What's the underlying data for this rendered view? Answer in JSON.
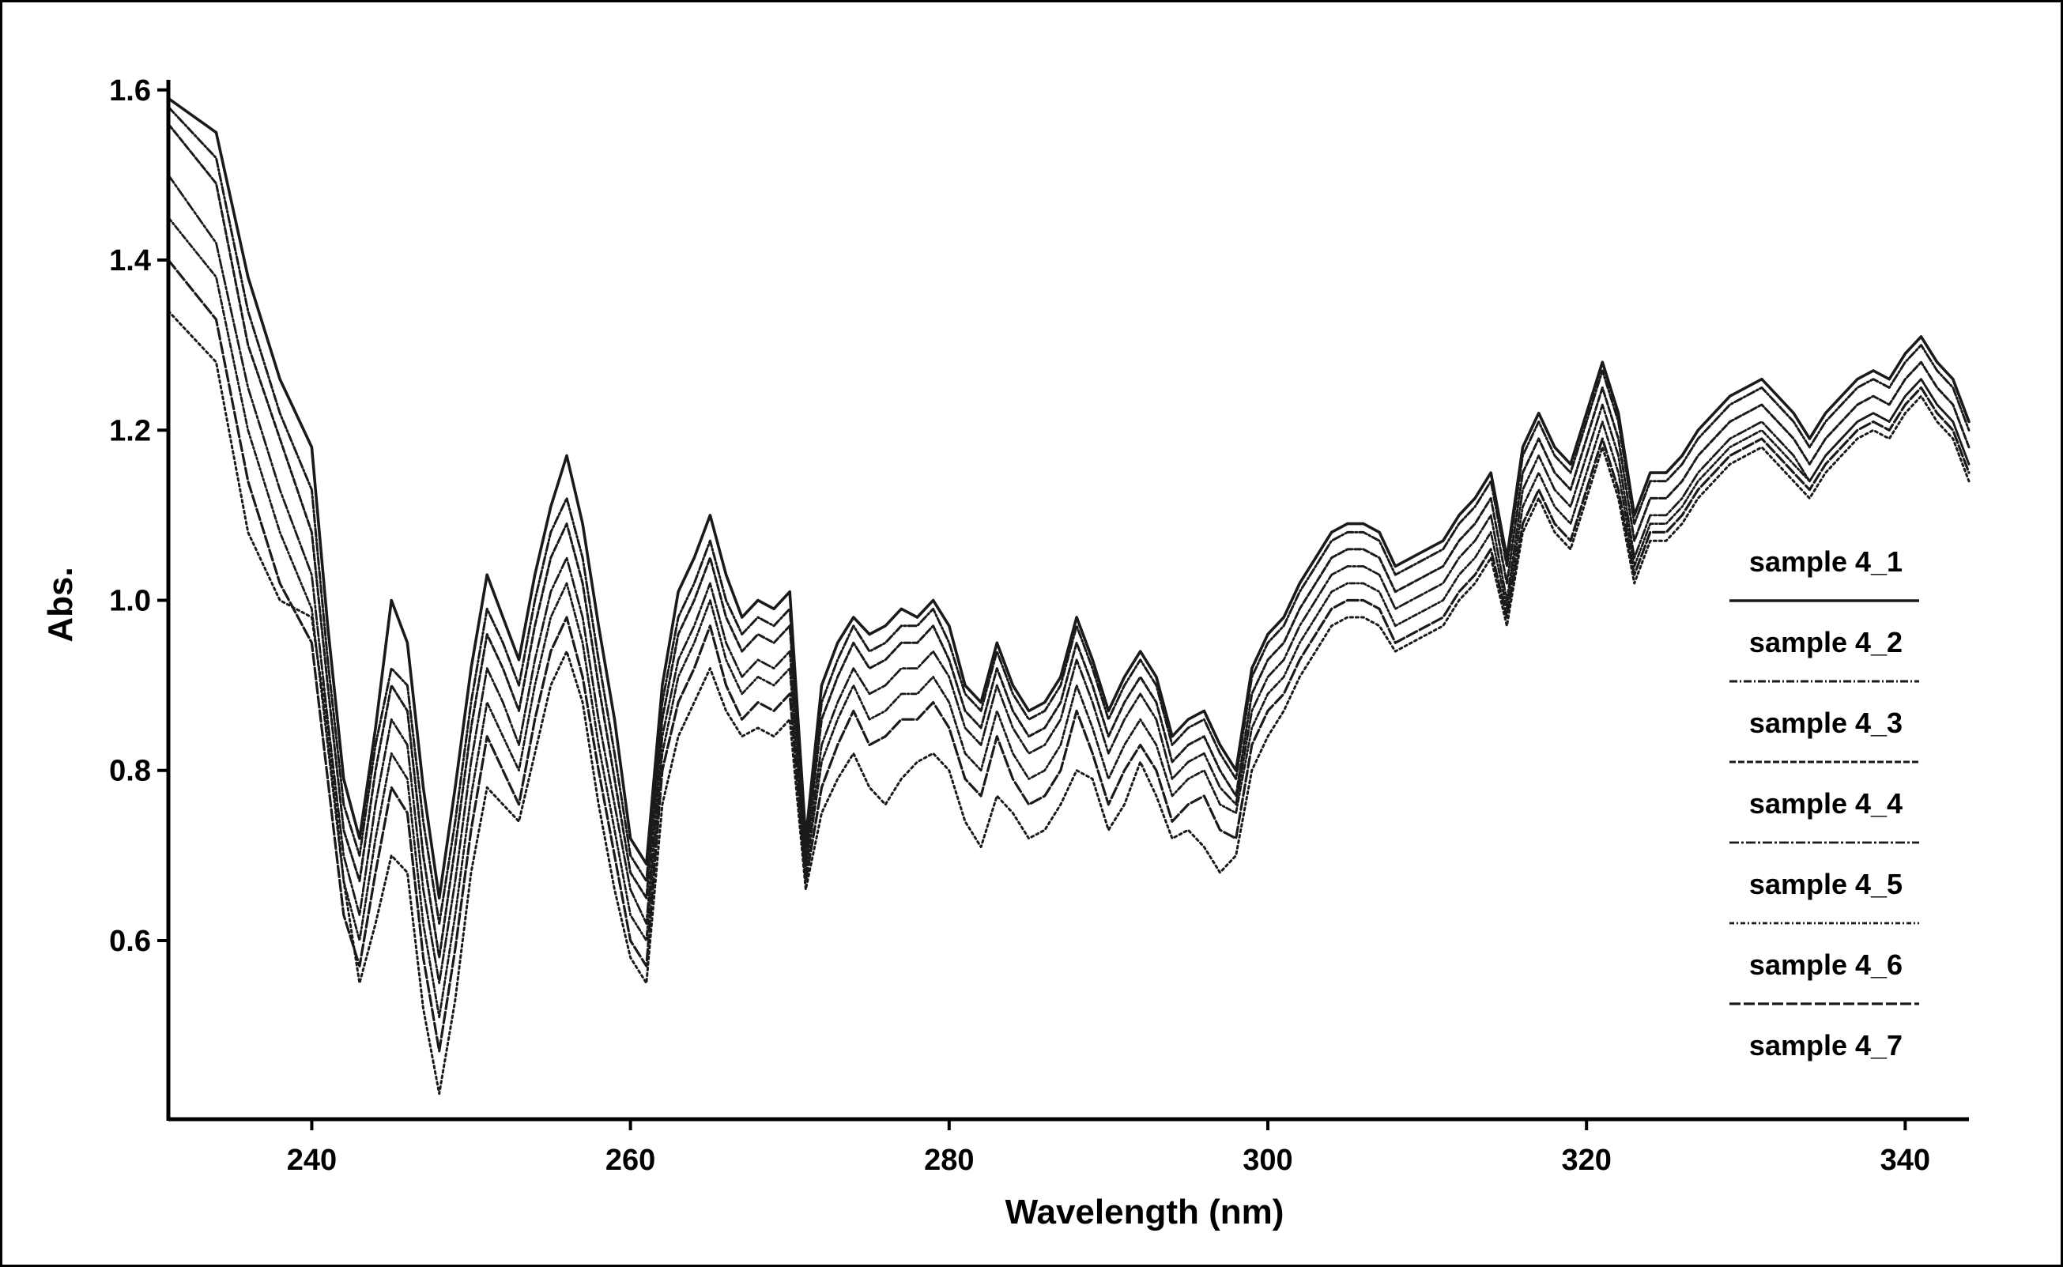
{
  "chart_data": {
    "type": "line",
    "xlabel": "Wavelength (nm)",
    "ylabel": "Abs.",
    "xlim": [
      231,
      344
    ],
    "ylim": [
      0.39,
      1.61
    ],
    "xticks": [
      240,
      260,
      280,
      300,
      320,
      340
    ],
    "yticks": [
      0.6,
      0.8,
      1.0,
      1.2,
      1.4,
      1.6
    ],
    "yticklabels": [
      "0.6",
      "0.8",
      "1.0",
      "1.2",
      "1.4",
      "1.6"
    ],
    "grid": false,
    "legend_position": "right",
    "line_color": "#1a1a1a",
    "x": [
      231,
      234,
      236,
      238,
      240,
      241,
      242,
      243,
      244,
      245,
      246,
      247,
      248,
      249,
      250,
      251,
      252,
      253,
      254,
      255,
      256,
      257,
      258,
      259,
      260,
      261,
      262,
      263,
      264,
      265,
      266,
      267,
      268,
      269,
      270,
      271,
      272,
      273,
      274,
      275,
      276,
      277,
      278,
      279,
      280,
      281,
      282,
      283,
      284,
      285,
      286,
      287,
      288,
      289,
      290,
      291,
      292,
      293,
      294,
      295,
      296,
      297,
      298,
      299,
      300,
      301,
      302,
      303,
      304,
      305,
      306,
      307,
      308,
      309,
      310,
      311,
      312,
      313,
      314,
      315,
      316,
      317,
      318,
      319,
      320,
      321,
      322,
      323,
      324,
      325,
      326,
      327,
      328,
      329,
      330,
      331,
      332,
      333,
      334,
      335,
      336,
      337,
      338,
      339,
      340,
      341,
      342,
      343,
      344
    ],
    "series": [
      {
        "name": "sample 4_1",
        "values": [
          1.59,
          1.55,
          1.38,
          1.26,
          1.18,
          0.97,
          0.79,
          0.72,
          0.85,
          1.0,
          0.95,
          0.78,
          0.65,
          0.78,
          0.92,
          1.03,
          0.98,
          0.93,
          1.03,
          1.11,
          1.17,
          1.09,
          0.97,
          0.86,
          0.72,
          0.69,
          0.9,
          1.01,
          1.05,
          1.1,
          1.03,
          0.98,
          1.0,
          0.99,
          1.01,
          0.72,
          0.9,
          0.95,
          0.98,
          0.96,
          0.97,
          0.99,
          0.98,
          1.0,
          0.97,
          0.9,
          0.88,
          0.95,
          0.9,
          0.87,
          0.88,
          0.91,
          0.98,
          0.93,
          0.87,
          0.91,
          0.94,
          0.91,
          0.84,
          0.86,
          0.87,
          0.83,
          0.8,
          0.92,
          0.96,
          0.98,
          1.02,
          1.05,
          1.08,
          1.09,
          1.09,
          1.08,
          1.04,
          1.05,
          1.06,
          1.07,
          1.1,
          1.12,
          1.15,
          1.05,
          1.18,
          1.22,
          1.18,
          1.16,
          1.22,
          1.28,
          1.22,
          1.1,
          1.15,
          1.15,
          1.17,
          1.2,
          1.22,
          1.24,
          1.25,
          1.26,
          1.24,
          1.22,
          1.19,
          1.22,
          1.24,
          1.26,
          1.27,
          1.26,
          1.29,
          1.31,
          1.28,
          1.26,
          1.21
        ]
      },
      {
        "name": "sample 4_2",
        "values": [
          1.58,
          1.52,
          1.34,
          1.22,
          1.13,
          0.93,
          0.76,
          0.7,
          0.83,
          0.92,
          0.9,
          0.74,
          0.62,
          0.74,
          0.88,
          0.99,
          0.95,
          0.9,
          1.0,
          1.08,
          1.12,
          1.05,
          0.93,
          0.82,
          0.7,
          0.67,
          0.88,
          0.98,
          1.02,
          1.07,
          1.0,
          0.96,
          0.98,
          0.97,
          0.99,
          0.71,
          0.88,
          0.93,
          0.97,
          0.94,
          0.95,
          0.97,
          0.97,
          0.99,
          0.95,
          0.89,
          0.87,
          0.94,
          0.89,
          0.86,
          0.87,
          0.9,
          0.97,
          0.92,
          0.86,
          0.9,
          0.93,
          0.9,
          0.83,
          0.85,
          0.86,
          0.82,
          0.79,
          0.91,
          0.95,
          0.97,
          1.01,
          1.04,
          1.07,
          1.08,
          1.08,
          1.07,
          1.03,
          1.04,
          1.05,
          1.06,
          1.09,
          1.11,
          1.14,
          1.04,
          1.17,
          1.21,
          1.17,
          1.15,
          1.21,
          1.27,
          1.21,
          1.09,
          1.14,
          1.14,
          1.16,
          1.19,
          1.21,
          1.23,
          1.24,
          1.25,
          1.23,
          1.21,
          1.18,
          1.21,
          1.23,
          1.25,
          1.26,
          1.25,
          1.28,
          1.3,
          1.27,
          1.25,
          1.2
        ]
      },
      {
        "name": "sample 4_3",
        "values": [
          1.56,
          1.49,
          1.3,
          1.19,
          1.08,
          0.9,
          0.73,
          0.67,
          0.8,
          0.9,
          0.87,
          0.7,
          0.58,
          0.71,
          0.85,
          0.96,
          0.92,
          0.87,
          0.97,
          1.05,
          1.09,
          1.02,
          0.9,
          0.79,
          0.68,
          0.65,
          0.86,
          0.96,
          1.0,
          1.05,
          0.98,
          0.94,
          0.96,
          0.95,
          0.97,
          0.7,
          0.86,
          0.91,
          0.95,
          0.92,
          0.93,
          0.95,
          0.95,
          0.97,
          0.93,
          0.87,
          0.85,
          0.92,
          0.87,
          0.84,
          0.85,
          0.88,
          0.95,
          0.9,
          0.84,
          0.88,
          0.91,
          0.88,
          0.81,
          0.83,
          0.84,
          0.8,
          0.77,
          0.89,
          0.93,
          0.95,
          0.99,
          1.02,
          1.05,
          1.06,
          1.06,
          1.05,
          1.01,
          1.02,
          1.03,
          1.04,
          1.07,
          1.09,
          1.12,
          1.02,
          1.15,
          1.19,
          1.15,
          1.13,
          1.19,
          1.25,
          1.19,
          1.07,
          1.12,
          1.12,
          1.14,
          1.17,
          1.19,
          1.21,
          1.22,
          1.23,
          1.21,
          1.19,
          1.16,
          1.19,
          1.21,
          1.23,
          1.24,
          1.23,
          1.26,
          1.28,
          1.25,
          1.23,
          1.18
        ]
      },
      {
        "name": "sample 4_4",
        "values": [
          1.5,
          1.42,
          1.25,
          1.13,
          1.03,
          0.86,
          0.7,
          0.63,
          0.76,
          0.86,
          0.83,
          0.66,
          0.55,
          0.67,
          0.81,
          0.92,
          0.88,
          0.83,
          0.93,
          1.01,
          1.05,
          0.98,
          0.86,
          0.76,
          0.66,
          0.62,
          0.84,
          0.93,
          0.97,
          1.02,
          0.95,
          0.91,
          0.93,
          0.92,
          0.94,
          0.69,
          0.83,
          0.88,
          0.92,
          0.89,
          0.9,
          0.92,
          0.92,
          0.94,
          0.91,
          0.85,
          0.83,
          0.9,
          0.85,
          0.82,
          0.83,
          0.86,
          0.93,
          0.88,
          0.82,
          0.86,
          0.89,
          0.86,
          0.79,
          0.81,
          0.82,
          0.78,
          0.76,
          0.87,
          0.91,
          0.93,
          0.97,
          1.0,
          1.03,
          1.04,
          1.04,
          1.03,
          0.99,
          1.0,
          1.01,
          1.02,
          1.05,
          1.07,
          1.1,
          1.0,
          1.13,
          1.17,
          1.13,
          1.11,
          1.17,
          1.23,
          1.17,
          1.05,
          1.1,
          1.1,
          1.12,
          1.15,
          1.17,
          1.19,
          1.2,
          1.21,
          1.19,
          1.17,
          1.14,
          1.17,
          1.19,
          1.21,
          1.22,
          1.21,
          1.24,
          1.26,
          1.23,
          1.21,
          1.16
        ]
      },
      {
        "name": "sample 4_5",
        "values": [
          1.45,
          1.38,
          1.2,
          1.08,
          0.99,
          0.83,
          0.67,
          0.6,
          0.72,
          0.82,
          0.79,
          0.62,
          0.51,
          0.63,
          0.77,
          0.88,
          0.84,
          0.8,
          0.9,
          0.98,
          1.02,
          0.95,
          0.83,
          0.73,
          0.63,
          0.6,
          0.82,
          0.91,
          0.95,
          1.0,
          0.93,
          0.89,
          0.91,
          0.9,
          0.92,
          0.68,
          0.81,
          0.86,
          0.9,
          0.86,
          0.87,
          0.89,
          0.89,
          0.91,
          0.88,
          0.82,
          0.8,
          0.87,
          0.82,
          0.79,
          0.8,
          0.83,
          0.9,
          0.85,
          0.79,
          0.83,
          0.86,
          0.83,
          0.77,
          0.79,
          0.8,
          0.76,
          0.75,
          0.85,
          0.89,
          0.91,
          0.95,
          0.98,
          1.01,
          1.02,
          1.02,
          1.01,
          0.97,
          0.98,
          0.99,
          1.0,
          1.03,
          1.05,
          1.08,
          0.99,
          1.11,
          1.15,
          1.11,
          1.09,
          1.15,
          1.21,
          1.15,
          1.04,
          1.09,
          1.09,
          1.11,
          1.14,
          1.16,
          1.18,
          1.19,
          1.2,
          1.18,
          1.16,
          1.14,
          1.17,
          1.19,
          1.21,
          1.22,
          1.21,
          1.24,
          1.26,
          1.23,
          1.21,
          1.16
        ]
      },
      {
        "name": "sample 4_6",
        "values": [
          1.4,
          1.33,
          1.14,
          1.02,
          0.95,
          0.79,
          0.63,
          0.57,
          0.68,
          0.78,
          0.75,
          0.58,
          0.47,
          0.59,
          0.73,
          0.84,
          0.8,
          0.76,
          0.86,
          0.94,
          0.98,
          0.91,
          0.8,
          0.7,
          0.6,
          0.57,
          0.8,
          0.88,
          0.92,
          0.97,
          0.9,
          0.86,
          0.88,
          0.87,
          0.89,
          0.67,
          0.78,
          0.83,
          0.87,
          0.83,
          0.84,
          0.86,
          0.86,
          0.88,
          0.85,
          0.79,
          0.77,
          0.84,
          0.79,
          0.76,
          0.77,
          0.8,
          0.87,
          0.82,
          0.76,
          0.8,
          0.83,
          0.8,
          0.74,
          0.76,
          0.77,
          0.73,
          0.72,
          0.83,
          0.87,
          0.89,
          0.93,
          0.96,
          0.99,
          1.0,
          1.0,
          0.99,
          0.95,
          0.96,
          0.97,
          0.98,
          1.01,
          1.03,
          1.06,
          0.98,
          1.09,
          1.13,
          1.09,
          1.07,
          1.13,
          1.19,
          1.13,
          1.03,
          1.08,
          1.08,
          1.1,
          1.13,
          1.15,
          1.17,
          1.18,
          1.19,
          1.17,
          1.15,
          1.13,
          1.16,
          1.18,
          1.2,
          1.21,
          1.2,
          1.23,
          1.25,
          1.22,
          1.2,
          1.15
        ]
      },
      {
        "name": "sample 4_7",
        "values": [
          1.34,
          1.28,
          1.08,
          1.0,
          0.98,
          0.85,
          0.67,
          0.55,
          0.62,
          0.7,
          0.68,
          0.52,
          0.42,
          0.53,
          0.68,
          0.78,
          0.76,
          0.74,
          0.82,
          0.9,
          0.94,
          0.88,
          0.76,
          0.66,
          0.58,
          0.55,
          0.76,
          0.84,
          0.88,
          0.92,
          0.87,
          0.84,
          0.85,
          0.84,
          0.86,
          0.66,
          0.75,
          0.79,
          0.82,
          0.78,
          0.76,
          0.79,
          0.81,
          0.82,
          0.8,
          0.74,
          0.71,
          0.77,
          0.75,
          0.72,
          0.73,
          0.76,
          0.8,
          0.79,
          0.73,
          0.76,
          0.81,
          0.77,
          0.72,
          0.73,
          0.71,
          0.68,
          0.7,
          0.8,
          0.84,
          0.87,
          0.91,
          0.94,
          0.97,
          0.98,
          0.98,
          0.97,
          0.94,
          0.95,
          0.96,
          0.97,
          1.0,
          1.02,
          1.05,
          0.97,
          1.08,
          1.12,
          1.08,
          1.06,
          1.12,
          1.18,
          1.12,
          1.02,
          1.07,
          1.07,
          1.09,
          1.12,
          1.14,
          1.16,
          1.17,
          1.18,
          1.16,
          1.14,
          1.12,
          1.15,
          1.17,
          1.19,
          1.2,
          1.19,
          1.22,
          1.24,
          1.21,
          1.19,
          1.14
        ]
      }
    ]
  }
}
